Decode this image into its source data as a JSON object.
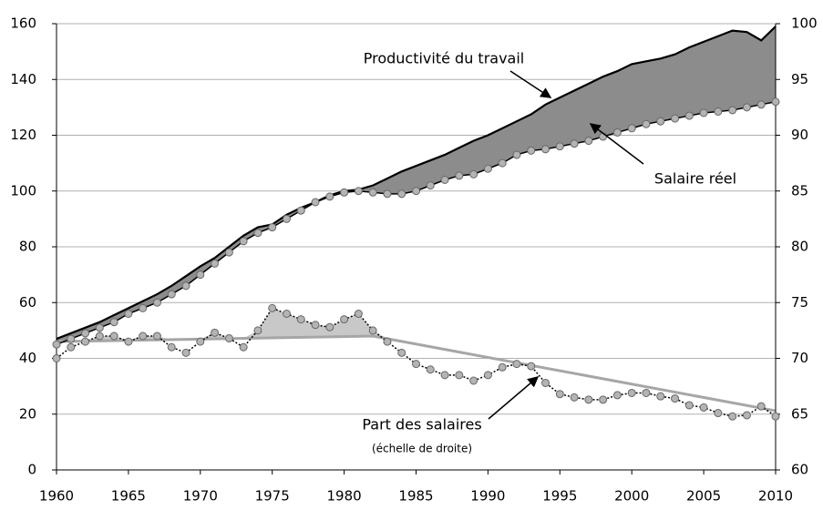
{
  "chart_data": {
    "type": "line",
    "x": [
      1960,
      1961,
      1962,
      1963,
      1964,
      1965,
      1966,
      1967,
      1968,
      1969,
      1970,
      1971,
      1972,
      1973,
      1974,
      1975,
      1976,
      1977,
      1978,
      1979,
      1980,
      1981,
      1982,
      1983,
      1984,
      1985,
      1986,
      1987,
      1988,
      1989,
      1990,
      1991,
      1992,
      1993,
      1994,
      1995,
      1996,
      1997,
      1998,
      1999,
      2000,
      2001,
      2002,
      2003,
      2004,
      2005,
      2006,
      2007,
      2008,
      2009,
      2010
    ],
    "xlim": [
      1960,
      2010
    ],
    "xticks": [
      1960,
      1965,
      1970,
      1975,
      1980,
      1985,
      1990,
      1995,
      2000,
      2005,
      2010
    ],
    "ylim": [
      0,
      160
    ],
    "yticks": [
      0,
      20,
      40,
      60,
      80,
      100,
      120,
      140,
      160
    ],
    "y2lim": [
      60,
      100
    ],
    "y2ticks": [
      60,
      65,
      70,
      75,
      80,
      85,
      90,
      95,
      100
    ],
    "grid": true,
    "series": [
      {
        "color": "#000000",
        "values": [
          47,
          49,
          51,
          53,
          55.5,
          58,
          60.5,
          63,
          66,
          69.5,
          73,
          76,
          80,
          84,
          87,
          88,
          91.5,
          94,
          96,
          98.5,
          100,
          100.5,
          102,
          104.5,
          107,
          109,
          111,
          113,
          115.5,
          118,
          120,
          122.5,
          125,
          127.5,
          131,
          133.5,
          136,
          138.5,
          141,
          143,
          145.5,
          146.5,
          147.5,
          149,
          151.5,
          153.5,
          155.5,
          157.5,
          157,
          154,
          159
        ]
      },
      {
        "color": "#000000",
        "values": [
          45,
          47,
          49,
          51,
          53,
          56,
          58,
          60,
          63,
          66,
          70,
          74,
          78,
          82,
          85,
          87,
          90,
          93,
          96,
          98,
          99.5,
          100,
          99.5,
          99,
          99,
          100,
          102,
          104,
          105.5,
          106,
          108,
          110,
          113,
          114.5,
          115,
          116,
          117,
          118,
          119.5,
          121,
          122.5,
          124,
          125,
          126,
          127,
          128,
          128.5,
          129,
          130,
          131,
          132
        ]
      },
      {
        "color": "#000000",
        "axis": "y2",
        "values": [
          70,
          71,
          71.5,
          72,
          72,
          71.5,
          72,
          72,
          71,
          70.5,
          71.5,
          72.3,
          71.8,
          71,
          72.5,
          74.5,
          74,
          73.5,
          73,
          72.8,
          73.5,
          74,
          72.5,
          71.5,
          70.5,
          69.5,
          69,
          68.5,
          68.5,
          68,
          68.5,
          69.2,
          69.5,
          69.3,
          67.8,
          66.8,
          66.5,
          66.3,
          66.3,
          66.7,
          66.9,
          66.9,
          66.6,
          66.4,
          65.8,
          65.6,
          65.1,
          64.8,
          64.9,
          65.7,
          64.8
        ]
      }
    ],
    "trend": {
      "axis": "y2",
      "color": "#a6a6a6",
      "x": [
        1960,
        1982,
        2010
      ],
      "values": [
        71.5,
        72,
        65.3
      ]
    },
    "annotations": [
      "Productivité du travail",
      "Salaire réel",
      "Part des salaires",
      "(échelle de droite)"
    ]
  }
}
